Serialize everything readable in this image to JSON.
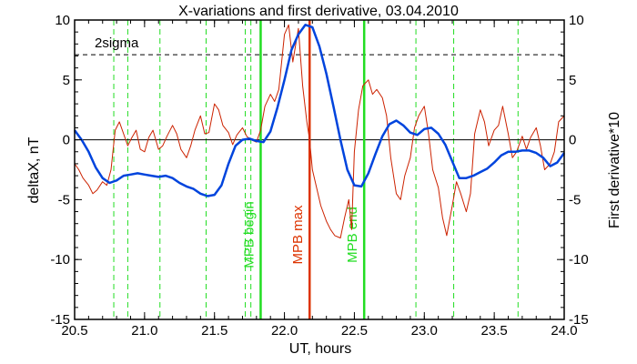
{
  "chart_data": {
    "type": "line",
    "title": "X-variations and first derivative, 03.04.2010",
    "xlabel": "UT, hours",
    "ylabel_left": "deltaX, nT",
    "ylabel_right": "First derivative*10",
    "xlim": [
      20.5,
      24.0
    ],
    "ylim": [
      -15,
      10
    ],
    "x_ticks": [
      "20.5",
      "21.0",
      "21.5",
      "22.0",
      "22.5",
      "23.0",
      "23.5",
      "24.0"
    ],
    "y_ticks": [
      "10",
      "5",
      "0",
      "-5",
      "-10",
      "-15"
    ],
    "threshold": {
      "label": "2sigma",
      "value": 7.1
    },
    "zero_line": 0,
    "colors": {
      "blue": "#0044dd",
      "red": "#cc2200",
      "green": "#22dd22",
      "mark_red": "#dd3300"
    },
    "event_lines": [
      {
        "label": "MPB begin",
        "x": 21.83,
        "color": "#22dd22"
      },
      {
        "label": "MPB max",
        "x": 22.18,
        "color": "#dd3300"
      },
      {
        "label": "MPB end",
        "x": 22.57,
        "color": "#22dd22"
      }
    ],
    "dashed_lines_x": [
      20.78,
      20.88,
      21.11,
      21.44,
      21.72,
      21.76,
      22.94,
      23.21,
      23.67
    ],
    "series": [
      {
        "name": "deltaX",
        "color": "#0044dd",
        "axis": "left",
        "x": [
          20.5,
          20.55,
          20.6,
          20.65,
          20.7,
          20.75,
          20.8,
          20.85,
          20.9,
          20.95,
          21.0,
          21.05,
          21.1,
          21.15,
          21.2,
          21.25,
          21.3,
          21.35,
          21.4,
          21.45,
          21.5,
          21.55,
          21.6,
          21.65,
          21.7,
          21.75,
          21.8,
          21.85,
          21.9,
          21.95,
          22.0,
          22.05,
          22.1,
          22.15,
          22.2,
          22.25,
          22.3,
          22.35,
          22.4,
          22.45,
          22.5,
          22.55,
          22.6,
          22.65,
          22.7,
          22.75,
          22.8,
          22.85,
          22.9,
          22.95,
          23.0,
          23.05,
          23.1,
          23.15,
          23.2,
          23.25,
          23.3,
          23.35,
          23.4,
          23.45,
          23.5,
          23.55,
          23.6,
          23.65,
          23.7,
          23.75,
          23.8,
          23.85,
          23.9,
          23.95,
          24.0
        ],
        "y": [
          0.8,
          0.0,
          -1.0,
          -2.3,
          -3.2,
          -3.6,
          -3.4,
          -3.0,
          -2.9,
          -2.8,
          -2.9,
          -3.0,
          -3.1,
          -3.0,
          -3.2,
          -3.6,
          -3.9,
          -4.1,
          -4.5,
          -4.7,
          -4.6,
          -3.8,
          -2.0,
          -0.5,
          0.0,
          0.1,
          -0.1,
          -0.2,
          0.7,
          2.7,
          5.0,
          7.5,
          8.8,
          9.6,
          9.4,
          7.8,
          5.5,
          2.8,
          0.0,
          -2.5,
          -3.8,
          -3.9,
          -2.8,
          -1.2,
          0.3,
          1.3,
          1.6,
          1.2,
          0.6,
          0.4,
          0.9,
          1.0,
          0.5,
          -0.4,
          -1.8,
          -3.2,
          -3.2,
          -3.0,
          -2.7,
          -2.4,
          -1.9,
          -1.3,
          -1.0,
          -1.0,
          -0.9,
          -0.9,
          -1.1,
          -1.5,
          -2.2,
          -1.9,
          -1.1
        ]
      },
      {
        "name": "First derivative*10",
        "color": "#cc2200",
        "axis": "right",
        "x": [
          20.5,
          20.53,
          20.56,
          20.6,
          20.63,
          20.66,
          20.7,
          20.73,
          20.76,
          20.79,
          20.82,
          20.85,
          20.88,
          20.91,
          20.94,
          20.97,
          21.0,
          21.03,
          21.06,
          21.1,
          21.13,
          21.16,
          21.2,
          21.23,
          21.26,
          21.3,
          21.33,
          21.36,
          21.4,
          21.43,
          21.46,
          21.5,
          21.53,
          21.56,
          21.6,
          21.63,
          21.66,
          21.7,
          21.73,
          21.76,
          21.8,
          21.83,
          21.86,
          21.9,
          21.93,
          21.96,
          22.0,
          22.03,
          22.06,
          22.1,
          22.13,
          22.16,
          22.18,
          22.2,
          22.23,
          22.26,
          22.3,
          22.33,
          22.36,
          22.4,
          22.43,
          22.46,
          22.48,
          22.5,
          22.53,
          22.56,
          22.6,
          22.63,
          22.66,
          22.7,
          22.73,
          22.76,
          22.8,
          22.83,
          22.86,
          22.9,
          22.93,
          22.96,
          23.0,
          23.03,
          23.06,
          23.1,
          23.13,
          23.16,
          23.2,
          23.23,
          23.26,
          23.3,
          23.33,
          23.36,
          23.4,
          23.43,
          23.46,
          23.5,
          23.53,
          23.56,
          23.6,
          23.63,
          23.66,
          23.7,
          23.73,
          23.76,
          23.8,
          23.83,
          23.86,
          23.9,
          23.93,
          23.96,
          24.0
        ],
        "y": [
          -2.0,
          -2.5,
          -3.2,
          -3.8,
          -4.5,
          -4.2,
          -3.5,
          -3.8,
          -2.5,
          0.8,
          1.5,
          0.5,
          -0.5,
          0.2,
          0.8,
          -0.8,
          -1.0,
          0.2,
          0.8,
          -0.8,
          -0.5,
          0.3,
          1.2,
          0.5,
          -0.8,
          -1.5,
          -0.5,
          0.8,
          2.0,
          0.5,
          0.6,
          3.0,
          2.5,
          1.2,
          0.6,
          -0.4,
          0.4,
          1.0,
          0.3,
          0.0,
          -0.2,
          0.8,
          2.8,
          3.8,
          3.2,
          4.2,
          8.8,
          9.6,
          6.5,
          9.3,
          4.5,
          1.5,
          0.0,
          -2.5,
          -4.0,
          -5.5,
          -6.8,
          -7.5,
          -8.0,
          -8.2,
          -6.5,
          -5.0,
          -7.5,
          -1.0,
          2.5,
          4.5,
          5.0,
          3.8,
          4.2,
          3.5,
          2.0,
          -1.5,
          -4.5,
          -5.0,
          -3.0,
          -1.5,
          1.0,
          2.0,
          2.8,
          0.5,
          -2.5,
          -4.0,
          -6.5,
          -8.0,
          -5.5,
          -3.5,
          -4.5,
          -6.0,
          -4.5,
          0.5,
          2.5,
          1.5,
          -0.5,
          0.8,
          1.2,
          2.8,
          0.5,
          -1.5,
          -1.0,
          0.3,
          -0.8,
          0.2,
          1.0,
          -0.5,
          -2.5,
          -2.0,
          -1.0,
          1.5,
          2.0
        ]
      }
    ]
  }
}
